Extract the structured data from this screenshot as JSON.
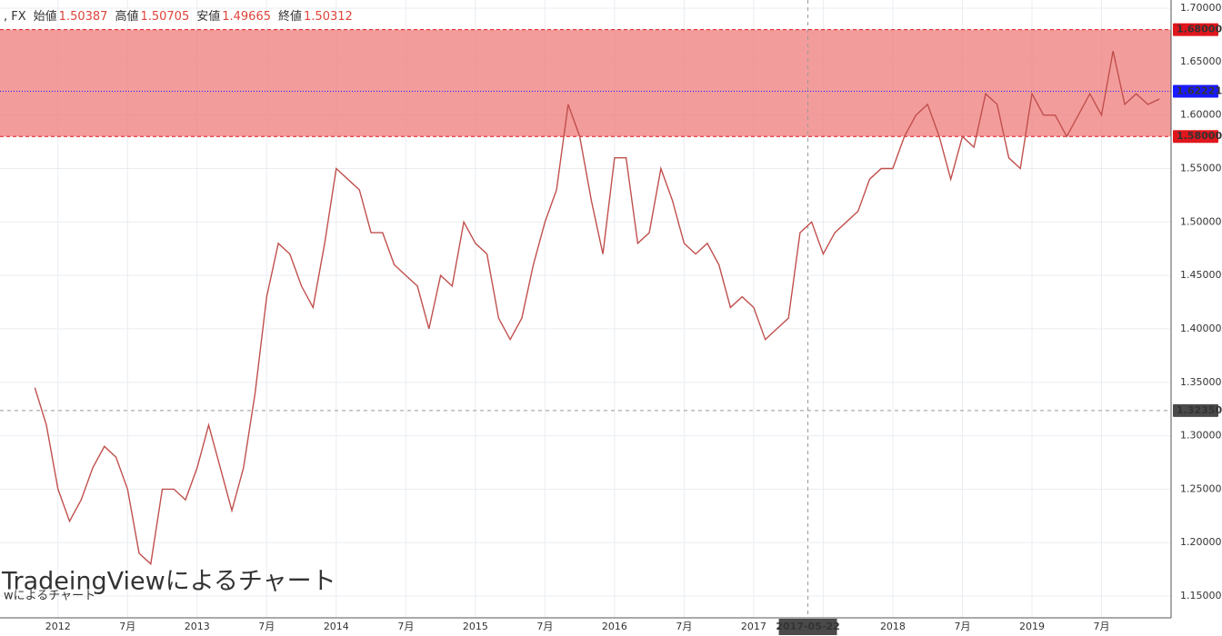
{
  "chart_data": {
    "type": "line",
    "header": {
      "symbol": ", FX",
      "open_label": "始値",
      "open": 1.50387,
      "high_label": "高値",
      "high": 1.50705,
      "low_label": "安値",
      "low": 1.49665,
      "close_label": "終値",
      "close": 1.50312
    },
    "watermark": "TradeingViewによるチャート",
    "watermark_small": "wによるチャート",
    "x": [
      "2011-11",
      "2011-12",
      "2012-01",
      "2012-02",
      "2012-03",
      "2012-04",
      "2012-05",
      "2012-06",
      "2012-07",
      "2012-08",
      "2012-09",
      "2012-10",
      "2012-11",
      "2012-12",
      "2013-01",
      "2013-02",
      "2013-03",
      "2013-04",
      "2013-05",
      "2013-06",
      "2013-07",
      "2013-08",
      "2013-09",
      "2013-10",
      "2013-11",
      "2013-12",
      "2014-01",
      "2014-02",
      "2014-03",
      "2014-04",
      "2014-05",
      "2014-06",
      "2014-07",
      "2014-08",
      "2014-09",
      "2014-10",
      "2014-11",
      "2014-12",
      "2015-01",
      "2015-02",
      "2015-03",
      "2015-04",
      "2015-05",
      "2015-06",
      "2015-07",
      "2015-08",
      "2015-09",
      "2015-10",
      "2015-11",
      "2015-12",
      "2016-01",
      "2016-02",
      "2016-03",
      "2016-04",
      "2016-05",
      "2016-06",
      "2016-07",
      "2016-08",
      "2016-09",
      "2016-10",
      "2016-11",
      "2016-12",
      "2017-01",
      "2017-02",
      "2017-03",
      "2017-04",
      "2017-05",
      "2017-06",
      "2017-07",
      "2017-08",
      "2017-09",
      "2017-10",
      "2017-11",
      "2017-12",
      "2018-01",
      "2018-02",
      "2018-03",
      "2018-04",
      "2018-05",
      "2018-06",
      "2018-07",
      "2018-08",
      "2018-09",
      "2018-10",
      "2018-11",
      "2018-12",
      "2019-01",
      "2019-02",
      "2019-03",
      "2019-04",
      "2019-05",
      "2019-06",
      "2019-07",
      "2019-08",
      "2019-09",
      "2019-10",
      "2019-11",
      "2019-12"
    ],
    "series": [
      {
        "color": "#c0504d",
        "values": [
          1.345,
          1.31,
          1.25,
          1.22,
          1.24,
          1.27,
          1.29,
          1.28,
          1.25,
          1.19,
          1.18,
          1.25,
          1.25,
          1.24,
          1.27,
          1.31,
          1.27,
          1.23,
          1.27,
          1.34,
          1.43,
          1.48,
          1.47,
          1.44,
          1.42,
          1.48,
          1.55,
          1.54,
          1.53,
          1.49,
          1.49,
          1.46,
          1.45,
          1.44,
          1.4,
          1.45,
          1.44,
          1.5,
          1.48,
          1.47,
          1.41,
          1.39,
          1.41,
          1.46,
          1.5,
          1.53,
          1.61,
          1.58,
          1.52,
          1.47,
          1.56,
          1.56,
          1.48,
          1.49,
          1.55,
          1.52,
          1.48,
          1.47,
          1.48,
          1.46,
          1.42,
          1.43,
          1.42,
          1.39,
          1.4,
          1.41,
          1.49,
          1.5,
          1.47,
          1.49,
          1.5,
          1.51,
          1.54,
          1.55,
          1.55,
          1.58,
          1.6,
          1.61,
          1.58,
          1.54,
          1.58,
          1.57,
          1.62,
          1.61,
          1.56,
          1.55,
          1.62,
          1.6,
          1.6,
          1.58,
          1.6,
          1.62,
          1.6,
          1.66,
          1.61,
          1.62,
          1.61,
          1.615
        ]
      }
    ],
    "xlim": [
      "2011-08",
      "2020-01"
    ],
    "xticks": [
      {
        "value": "2012-01",
        "label": "2012"
      },
      {
        "value": "2012-07",
        "label": "7月"
      },
      {
        "value": "2013-01",
        "label": "2013"
      },
      {
        "value": "2013-07",
        "label": "7月"
      },
      {
        "value": "2014-01",
        "label": "2014"
      },
      {
        "value": "2014-07",
        "label": "7月"
      },
      {
        "value": "2015-01",
        "label": "2015"
      },
      {
        "value": "2015-07",
        "label": "7月"
      },
      {
        "value": "2016-01",
        "label": "2016"
      },
      {
        "value": "2016-07",
        "label": "7月"
      },
      {
        "value": "2017-01",
        "label": "2017"
      },
      {
        "value": "2017-07",
        "label": "7月"
      },
      {
        "value": "2018-01",
        "label": "2018"
      },
      {
        "value": "2018-07",
        "label": "7月"
      },
      {
        "value": "2019-01",
        "label": "2019"
      },
      {
        "value": "2019-07",
        "label": "7月"
      }
    ],
    "ylim": [
      1.1296,
      1.7077
    ],
    "yticks": [
      {
        "value": 1.7,
        "label": "1.70000"
      },
      {
        "value": 1.65,
        "label": "1.65000"
      },
      {
        "value": 1.6,
        "label": "1.60000"
      },
      {
        "value": 1.55,
        "label": "1.55000"
      },
      {
        "value": 1.5,
        "label": "1.50000"
      },
      {
        "value": 1.45,
        "label": "1.45000"
      },
      {
        "value": 1.4,
        "label": "1.40000"
      },
      {
        "value": 1.35,
        "label": "1.35000"
      },
      {
        "value": 1.3,
        "label": "1.30000"
      },
      {
        "value": 1.25,
        "label": "1.25000"
      },
      {
        "value": 1.2,
        "label": "1.20000"
      },
      {
        "value": 1.15,
        "label": "1.15000"
      }
    ],
    "grid": true,
    "zone": {
      "color": "#f08080",
      "high": {
        "value": 1.68,
        "label": "1.68000"
      },
      "low": {
        "value": 1.58,
        "label": "1.58000"
      }
    },
    "level": {
      "value": 1.62221,
      "label": "1.62221",
      "color": "#1a1aff"
    },
    "crosshair": {
      "x": "2017-05-22",
      "y": {
        "value": 1.3235,
        "label": "1.32350"
      }
    }
  }
}
